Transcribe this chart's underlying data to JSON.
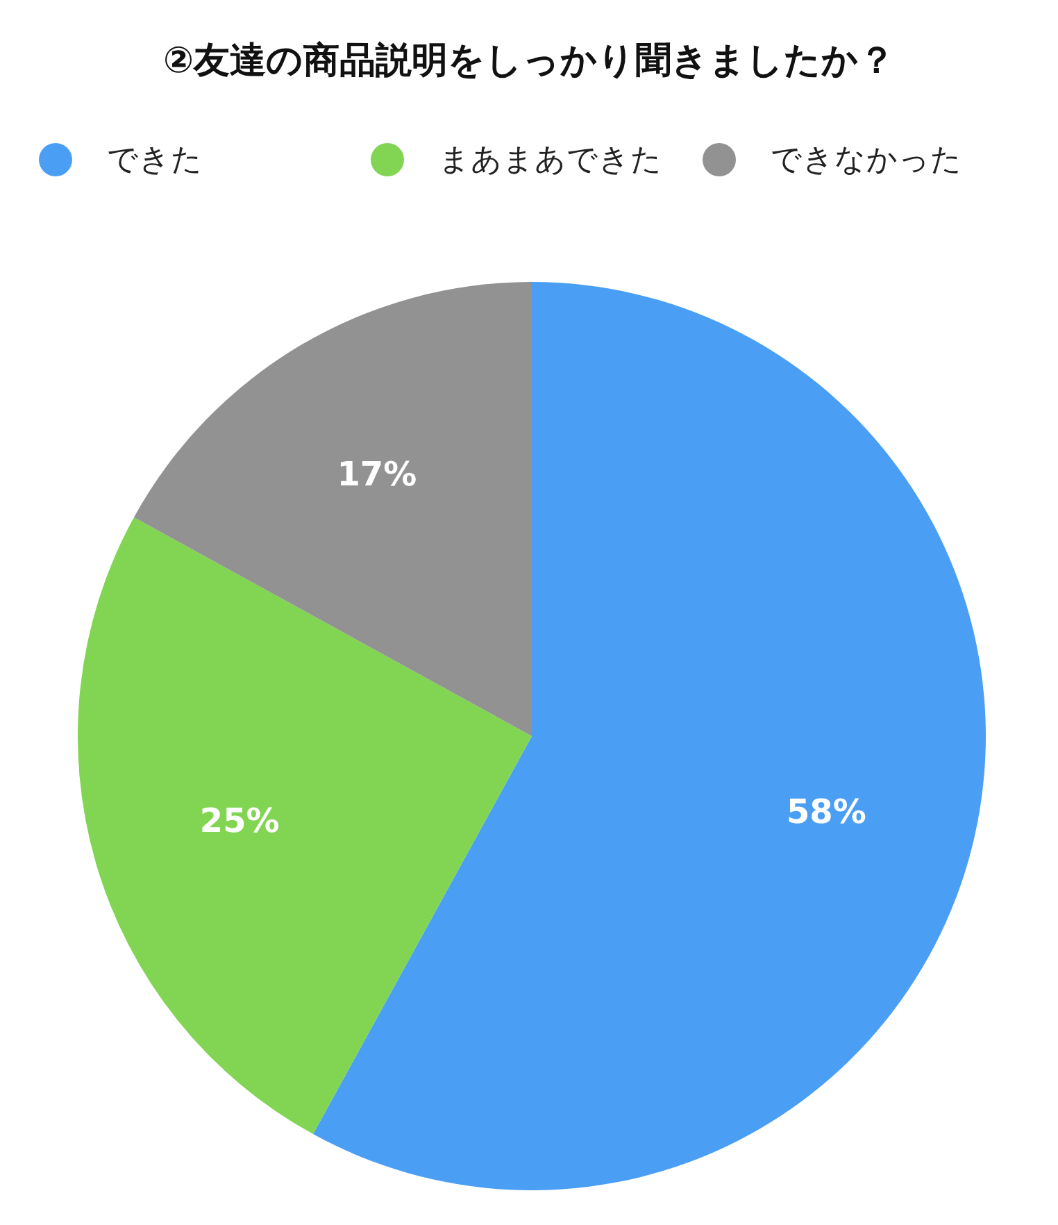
{
  "chart_data": {
    "type": "pie",
    "title": "②友達の商品説明をしっかり聞きましたか？",
    "categories": [
      "できた",
      "まあまあできた",
      "できなかった"
    ],
    "values": [
      58,
      25,
      17
    ],
    "colors": [
      "#4a9ff5",
      "#82d552",
      "#929292"
    ],
    "value_labels": [
      "58%",
      "25%",
      "17%"
    ],
    "legend": "top"
  }
}
